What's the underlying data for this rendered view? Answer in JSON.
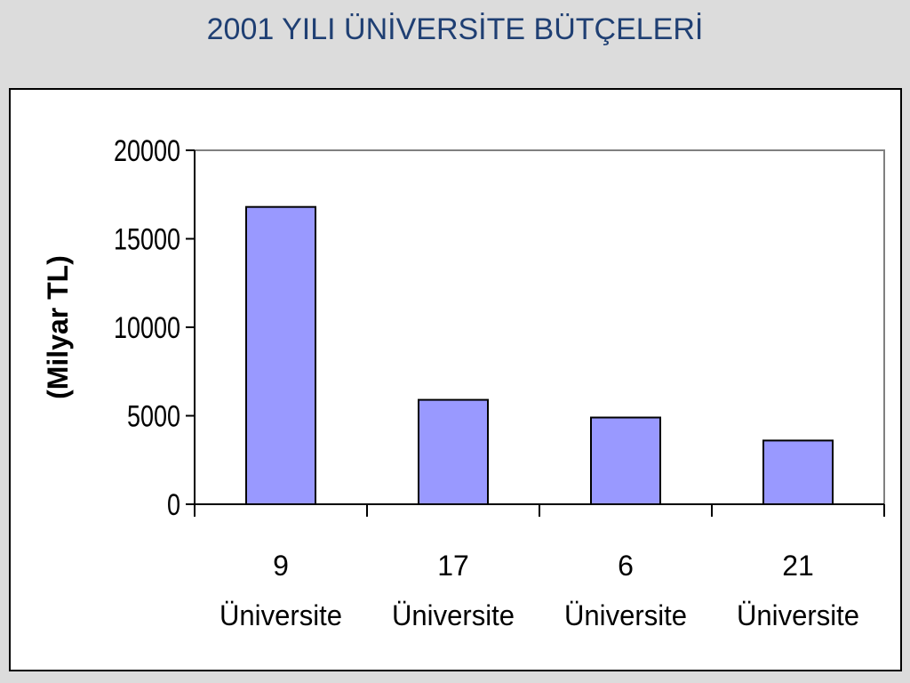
{
  "slide": {
    "title": "2001 YILI ÜNİVERSİTE BÜTÇELERİ"
  },
  "colors": {
    "background": "#dcdcdc",
    "title": "#1f3f73",
    "bar_fill": "#9999ff",
    "bar_stroke": "#000000"
  },
  "chart_data": {
    "type": "bar",
    "title": "",
    "xlabel": "",
    "ylabel": "(Milyar TL)",
    "categories": [
      [
        "9",
        "Üniversite"
      ],
      [
        "17",
        "Üniversite"
      ],
      [
        "6",
        "Üniversite"
      ],
      [
        "21",
        "Üniversite"
      ]
    ],
    "values": [
      16800,
      5900,
      4900,
      3600
    ],
    "ylim": [
      0,
      20000
    ],
    "yticks": [
      0,
      5000,
      10000,
      15000,
      20000
    ],
    "ytick_labels": [
      "0",
      "5000",
      "10000",
      "15000",
      "20000"
    ],
    "grid": false,
    "legend": "none"
  }
}
